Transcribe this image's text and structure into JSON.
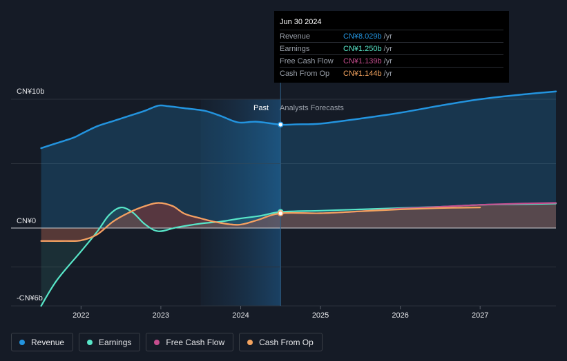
{
  "chart_data": {
    "type": "line",
    "y_unit_label_top": "CN¥10b",
    "y_unit_label_zero": "CN¥0",
    "y_unit_label_bottom": "-CN¥6b",
    "ylim": [
      -6,
      10
    ],
    "xlim": [
      2021.4,
      2027.95
    ],
    "x_ticks": [
      2022,
      2023,
      2024,
      2025,
      2026,
      2027
    ],
    "x_tick_labels": [
      "2022",
      "2023",
      "2024",
      "2025",
      "2026",
      "2027"
    ],
    "past_label": "Past",
    "forecast_label": "Analysts Forecasts",
    "divider_x": 2024.5,
    "highlight_start_x": 2023.5,
    "grid": true,
    "series": [
      {
        "name": "Revenue",
        "color": "#2394df",
        "fill": true,
        "points": [
          [
            2021.5,
            6.2
          ],
          [
            2021.7,
            6.6
          ],
          [
            2021.9,
            7.0
          ],
          [
            2022.0,
            7.3
          ],
          [
            2022.2,
            7.9
          ],
          [
            2022.4,
            8.3
          ],
          [
            2022.6,
            8.7
          ],
          [
            2022.8,
            9.1
          ],
          [
            2022.97,
            9.5
          ],
          [
            2023.1,
            9.45
          ],
          [
            2023.3,
            9.3
          ],
          [
            2023.55,
            9.1
          ],
          [
            2023.75,
            8.7
          ],
          [
            2023.97,
            8.2
          ],
          [
            2024.2,
            8.25
          ],
          [
            2024.5,
            8.029
          ],
          [
            2024.7,
            8.05
          ],
          [
            2025.0,
            8.1
          ],
          [
            2025.5,
            8.5
          ],
          [
            2026.0,
            8.95
          ],
          [
            2026.5,
            9.5
          ],
          [
            2027.0,
            10.0
          ],
          [
            2027.5,
            10.35
          ],
          [
            2027.95,
            10.6
          ]
        ]
      },
      {
        "name": "Earnings",
        "color": "#58e6c8",
        "fill": true,
        "points": [
          [
            2021.5,
            -6.0
          ],
          [
            2021.7,
            -4.0
          ],
          [
            2022.0,
            -1.8
          ],
          [
            2022.2,
            -0.3
          ],
          [
            2022.35,
            1.0
          ],
          [
            2022.5,
            1.6
          ],
          [
            2022.65,
            1.2
          ],
          [
            2022.8,
            0.3
          ],
          [
            2022.97,
            -0.25
          ],
          [
            2023.2,
            0.05
          ],
          [
            2023.5,
            0.35
          ],
          [
            2023.75,
            0.5
          ],
          [
            2024.0,
            0.75
          ],
          [
            2024.25,
            0.95
          ],
          [
            2024.5,
            1.25
          ],
          [
            2025.0,
            1.35
          ],
          [
            2025.5,
            1.45
          ],
          [
            2026.0,
            1.55
          ],
          [
            2026.5,
            1.65
          ],
          [
            2027.0,
            1.8
          ],
          [
            2027.5,
            1.85
          ],
          [
            2027.95,
            1.9
          ]
        ]
      },
      {
        "name": "Free Cash Flow",
        "color": "#c64d8e",
        "fill": true,
        "points": [
          [
            2021.5,
            -1.0
          ],
          [
            2021.8,
            -1.0
          ],
          [
            2022.0,
            -0.95
          ],
          [
            2022.2,
            -0.5
          ],
          [
            2022.4,
            0.5
          ],
          [
            2022.6,
            1.2
          ],
          [
            2022.8,
            1.7
          ],
          [
            2022.97,
            1.95
          ],
          [
            2023.15,
            1.7
          ],
          [
            2023.3,
            1.1
          ],
          [
            2023.5,
            0.75
          ],
          [
            2023.7,
            0.45
          ],
          [
            2023.97,
            0.25
          ],
          [
            2024.2,
            0.6
          ],
          [
            2024.5,
            1.139
          ],
          [
            2025.0,
            1.15
          ],
          [
            2025.5,
            1.3
          ],
          [
            2026.0,
            1.5
          ],
          [
            2026.5,
            1.65
          ],
          [
            2027.0,
            1.8
          ],
          [
            2027.5,
            1.9
          ],
          [
            2027.95,
            1.95
          ]
        ]
      },
      {
        "name": "Cash From Op",
        "color": "#f3a35f",
        "fill": false,
        "points": [
          [
            2021.5,
            -1.0
          ],
          [
            2021.8,
            -1.0
          ],
          [
            2022.0,
            -0.95
          ],
          [
            2022.2,
            -0.5
          ],
          [
            2022.4,
            0.5
          ],
          [
            2022.6,
            1.2
          ],
          [
            2022.8,
            1.7
          ],
          [
            2022.97,
            1.95
          ],
          [
            2023.15,
            1.7
          ],
          [
            2023.3,
            1.1
          ],
          [
            2023.5,
            0.75
          ],
          [
            2023.7,
            0.45
          ],
          [
            2023.97,
            0.25
          ],
          [
            2024.2,
            0.6
          ],
          [
            2024.5,
            1.144
          ],
          [
            2025.0,
            1.15
          ],
          [
            2025.5,
            1.3
          ],
          [
            2026.0,
            1.45
          ],
          [
            2026.5,
            1.55
          ],
          [
            2027.0,
            1.6
          ]
        ]
      }
    ]
  },
  "tooltip": {
    "date": "Jun 30 2024",
    "rows": [
      {
        "label": "Revenue",
        "value": "CN¥8.029b",
        "unit": "/yr",
        "color": "#2394df"
      },
      {
        "label": "Earnings",
        "value": "CN¥1.250b",
        "unit": "/yr",
        "color": "#58e6c8"
      },
      {
        "label": "Free Cash Flow",
        "value": "CN¥1.139b",
        "unit": "/yr",
        "color": "#c64d8e"
      },
      {
        "label": "Cash From Op",
        "value": "CN¥1.144b",
        "unit": "/yr",
        "color": "#f3a35f"
      }
    ]
  },
  "legend": [
    {
      "label": "Revenue",
      "color": "#2394df"
    },
    {
      "label": "Earnings",
      "color": "#58e6c8"
    },
    {
      "label": "Free Cash Flow",
      "color": "#c64d8e"
    },
    {
      "label": "Cash From Op",
      "color": "#f3a35f"
    }
  ]
}
